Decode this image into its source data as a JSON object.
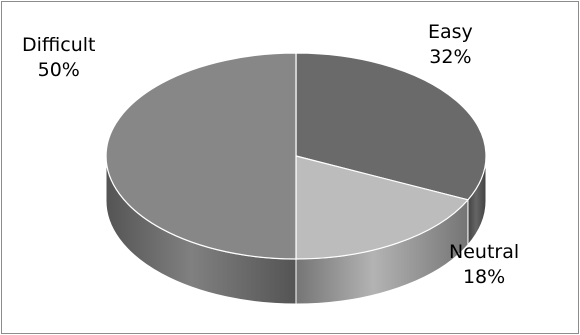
{
  "chart_data": {
    "type": "pie",
    "style": "3d",
    "slices": [
      {
        "label": "Easy",
        "value": 32,
        "value_text": "32%",
        "color": "#6a6a6a"
      },
      {
        "label": "Neutral",
        "value": 18,
        "value_text": "18%",
        "color": "#bcbcbc"
      },
      {
        "label": "Difficult",
        "value": 50,
        "value_text": "50%",
        "color": "#878787"
      }
    ],
    "legend": "none",
    "data_labels": "outside, category and percentage"
  }
}
